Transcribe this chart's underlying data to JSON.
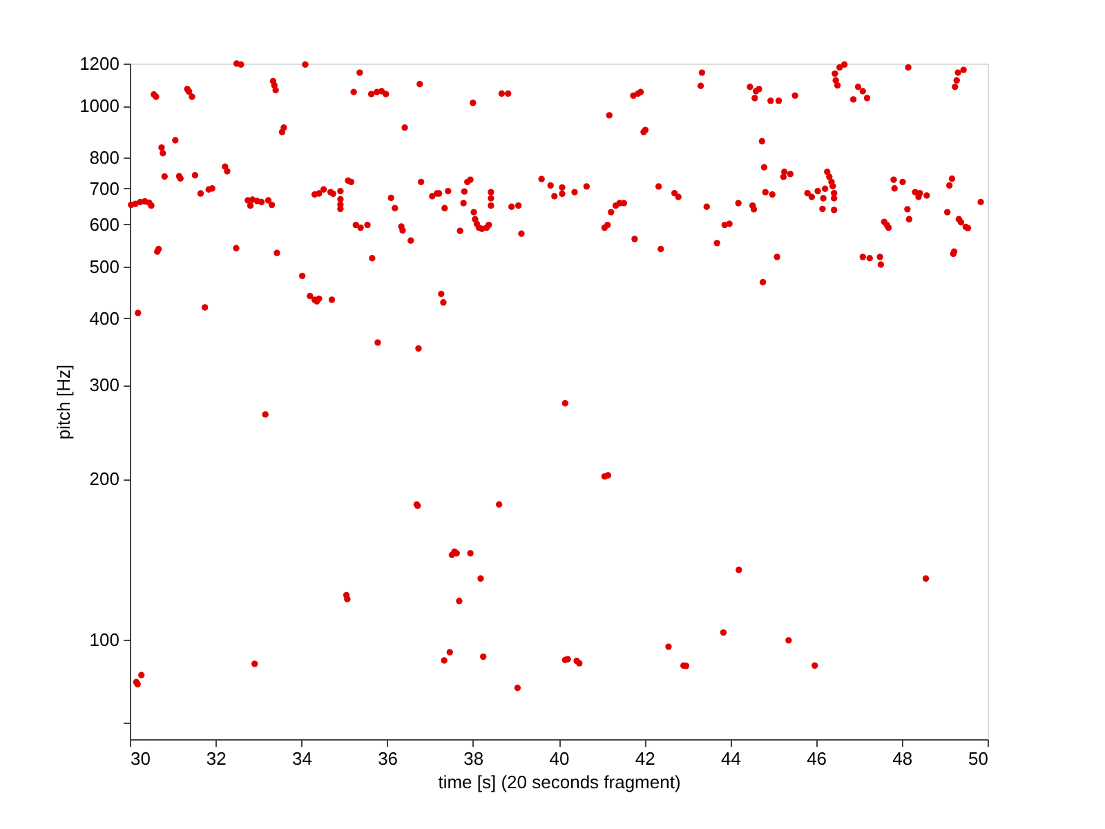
{
  "chart_data": {
    "type": "scatter",
    "xlabel": "time [s] (20 seconds fragment)",
    "ylabel": "pitch [Hz]",
    "xlim": [
      30,
      50
    ],
    "xticks": [
      30,
      32,
      34,
      36,
      38,
      40,
      42,
      44,
      46,
      48,
      50
    ],
    "ylim": [
      65,
      1200
    ],
    "yticks": [
      {
        "value": 70,
        "label": null
      },
      100,
      200,
      300,
      400,
      500,
      600,
      700,
      800,
      1000,
      1200
    ],
    "log": "y",
    "grid": false,
    "marker": "circle",
    "series": [
      {
        "color": "#e00000",
        "x": [
          30.03,
          30.13,
          30.24,
          30.35,
          30.45,
          30.5,
          30.19,
          30.56,
          30.61,
          30.64,
          30.67,
          30.74,
          30.77,
          30.81,
          31.06,
          31.15,
          31.18,
          31.34,
          31.38,
          31.45,
          31.52,
          31.65,
          31.75,
          31.84,
          31.92,
          32.22,
          32.27,
          32.49,
          32.59,
          32.48,
          32.75,
          32.81,
          32.86,
          32.97,
          33.07,
          33.23,
          33.31,
          33.34,
          33.37,
          33.4,
          33.43,
          33.55,
          33.59,
          34.02,
          34.09,
          34.2,
          34.31,
          34.36,
          34.41,
          34.71,
          34.31,
          34.41,
          34.52,
          34.68,
          34.74,
          34.91,
          34.91,
          34.91,
          34.91,
          35.09,
          35.16,
          35.22,
          35.27,
          35.38,
          35.54,
          35.36,
          35.65,
          35.63,
          35.76,
          35.87,
          35.97,
          35.78,
          36.09,
          36.18,
          36.33,
          36.36,
          36.41,
          36.55,
          36.73,
          36.76,
          36.79,
          37.05,
          37.16,
          37.21,
          37.42,
          37.34,
          37.26,
          37.31,
          37.7,
          37.78,
          37.8,
          37.87,
          37.94,
          38.0,
          38.02,
          38.05,
          38.09,
          38.14,
          38.21,
          38.32,
          38.37,
          38.42,
          38.42,
          38.42,
          38.67,
          38.82,
          38.9,
          39.06,
          39.13,
          39.6,
          39.81,
          39.9,
          40.08,
          40.08,
          40.37,
          40.65,
          41.18,
          41.07,
          41.14,
          41.22,
          41.33,
          41.42,
          41.52,
          41.77,
          41.74,
          41.85,
          41.91,
          41.98,
          42.02,
          42.33,
          42.38,
          42.7,
          42.79,
          43.34,
          43.31,
          43.45,
          43.69,
          43.87,
          43.98,
          44.19,
          44.52,
          44.55,
          44.46,
          44.6,
          44.67,
          44.57,
          44.74,
          44.76,
          44.79,
          44.82,
          44.98,
          45.09,
          44.94,
          45.13,
          45.24,
          45.26,
          45.4,
          45.51,
          45.8,
          45.9,
          46.04,
          46.17,
          46.21,
          46.15,
          46.42,
          46.26,
          46.31,
          46.36,
          46.39,
          46.42,
          46.42,
          46.44,
          46.46,
          46.5,
          46.55,
          46.66,
          46.98,
          47.09,
          47.19,
          46.87,
          47.09,
          47.25,
          47.49,
          47.51,
          47.59,
          47.65,
          47.69,
          47.81,
          47.83,
          48.02,
          48.15,
          48.13,
          48.17,
          48.31,
          48.39,
          48.42,
          48.58,
          49.06,
          49.11,
          49.17,
          49.2,
          49.22,
          49.24,
          49.28,
          49.31,
          49.44,
          49.33,
          49.38,
          49.49,
          49.54,
          49.84,
          30.15,
          30.18,
          30.27,
          32.91,
          33.16,
          35.05,
          35.07,
          36.69,
          36.71,
          37.33,
          37.46,
          38.24,
          37.51,
          37.57,
          37.62,
          37.94,
          37.68,
          38.18,
          38.61,
          39.04,
          40.15,
          41.07,
          41.15,
          40.15,
          40.21,
          40.42,
          40.48,
          42.56,
          42.91,
          42.97,
          43.84,
          44.2,
          45.36,
          45.97,
          48.56
        ],
        "values": [
          652,
          655,
          660,
          662,
          658,
          650,
          409,
          1050,
          1040,
          533,
          539,
          835,
          815,
          737,
          862,
          738,
          731,
          1075,
          1063,
          1040,
          741,
          685,
          419,
          697,
          700,
          769,
          754,
          1200,
          1195,
          541,
          665,
          650,
          667,
          663,
          660,
          665,
          652,
          1112,
          1092,
          1070,
          530,
          893,
          910,
          480,
          1195,
          440,
          433,
          430,
          435,
          433,
          682,
          685,
          697,
          689,
          684,
          692,
          668,
          653,
          641,
          724,
          720,
          1061,
          598,
          591,
          598,
          1154,
          518,
          1052,
          1061,
          1065,
          1052,
          360,
          672,
          643,
          594,
          584,
          910,
          559,
          351,
          1098,
          720,
          677,
          685,
          685,
          692,
          643,
          444,
          428,
          583,
          657,
          691,
          720,
          727,
          1013,
          632,
          613,
          601,
          591,
          588,
          591,
          598,
          689,
          671,
          650,
          1054,
          1054,
          647,
          650,
          576,
          729,
          709,
          677,
          703,
          684,
          689,
          706,
          960,
          591,
          598,
          632,
          650,
          657,
          657,
          563,
          1045,
          1054,
          1061,
          893,
          901,
          706,
          539,
          686,
          675,
          1154,
          1090,
          647,
          553,
          598,
          601,
          657,
          650,
          640,
          1085,
          1065,
          1075,
          1034,
          858,
          467,
          767,
          689,
          682,
          521,
          1022,
          1022,
          736,
          752,
          745,
          1045,
          686,
          675,
          692,
          671,
          699,
          641,
          638,
          752,
          736,
          720,
          707,
          686,
          671,
          1149,
          1116,
          1092,
          1180,
          1195,
          1085,
          1065,
          1034,
          1028,
          521,
          518,
          521,
          504,
          606,
          598,
          591,
          727,
          700,
          720,
          1180,
          640,
          613,
          689,
          675,
          686,
          679,
          632,
          709,
          730,
          528,
          533,
          1085,
          1116,
          1154,
          1168,
          613,
          605,
          593,
          590,
          660,
          83.2,
          82.4,
          85.7,
          90.0,
          264,
          121,
          119,
          179,
          178,
          91.3,
          94.6,
          92.8,
          144,
          146,
          145,
          145,
          118,
          130,
          179,
          81.1,
          277,
          202,
          203,
          91.5,
          91.8,
          91.1,
          90.2,
          96.9,
          89.3,
          89.2,
          103,
          135,
          99.6,
          89.3,
          130
        ]
      }
    ]
  }
}
